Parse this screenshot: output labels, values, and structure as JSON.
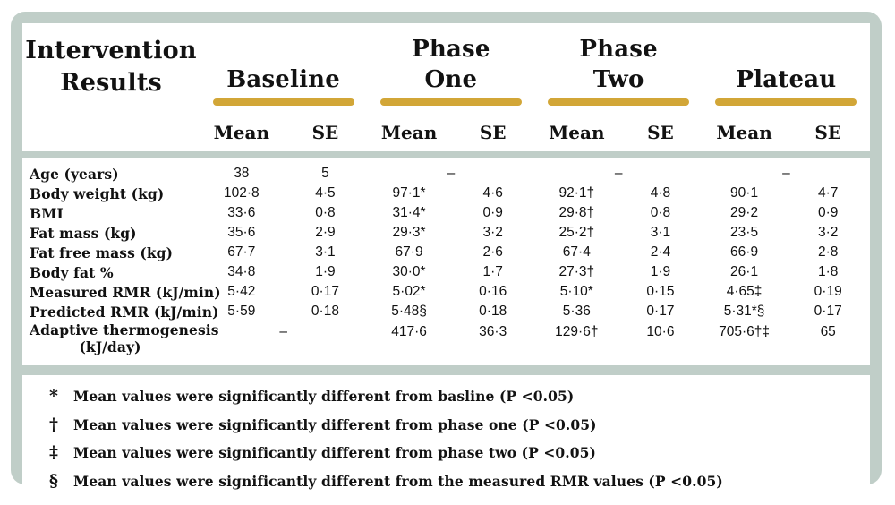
{
  "colors": {
    "frame_green": "#c0cec8",
    "gold": "#d2a637",
    "text": "#121212"
  },
  "header": {
    "title_line1": "Intervention",
    "title_line2": "Results",
    "groups": [
      {
        "line1": "",
        "line2": "Baseline"
      },
      {
        "line1": "Phase",
        "line2": "One"
      },
      {
        "line1": "Phase",
        "line2": "Two"
      },
      {
        "line1": "",
        "line2": "Plateau"
      }
    ],
    "mean_label": "Mean",
    "se_label": "SE"
  },
  "table": {
    "rows": [
      {
        "label": "Age (years)",
        "b_mean": "38",
        "b_se": "5",
        "p1": "–",
        "p2": "–",
        "pl": "–"
      },
      {
        "label": "Body weight (kg)",
        "b_mean": "102·8",
        "b_se": "4·5",
        "p1_mean": "97·1*",
        "p1_se": "4·6",
        "p2_mean": "92·1†",
        "p2_se": "4·8",
        "pl_mean": "90·1",
        "pl_se": "4·7"
      },
      {
        "label": "BMI",
        "b_mean": "33·6",
        "b_se": "0·8",
        "p1_mean": "31·4*",
        "p1_se": "0·9",
        "p2_mean": "29·8†",
        "p2_se": "0·8",
        "pl_mean": "29·2",
        "pl_se": "0·9"
      },
      {
        "label": "Fat mass (kg)",
        "b_mean": "35·6",
        "b_se": "2·9",
        "p1_mean": "29·3*",
        "p1_se": "3·2",
        "p2_mean": "25·2†",
        "p2_se": "3·1",
        "pl_mean": "23·5",
        "pl_se": "3·2"
      },
      {
        "label": "Fat free mass (kg)",
        "b_mean": "67·7",
        "b_se": "3·1",
        "p1_mean": "67·9",
        "p1_se": "2·6",
        "p2_mean": "67·4",
        "p2_se": "2·4",
        "pl_mean": "66·9",
        "pl_se": "2·8"
      },
      {
        "label": "Body fat %",
        "b_mean": "34·8",
        "b_se": "1·9",
        "p1_mean": "30·0*",
        "p1_se": "1·7",
        "p2_mean": "27·3†",
        "p2_se": "1·9",
        "pl_mean": "26·1",
        "pl_se": "1·8"
      },
      {
        "label": "Measured RMR (kJ/min)",
        "b_mean": "5·42",
        "b_se": "0·17",
        "p1_mean": "5·02*",
        "p1_se": "0·16",
        "p2_mean": "5·10*",
        "p2_se": "0·15",
        "pl_mean": "4·65‡",
        "pl_se": "0·19"
      },
      {
        "label": "Predicted RMR (kJ/min)",
        "b_mean": "5·59",
        "b_se": "0·18",
        "p1_mean": "5·48§",
        "p1_se": "0·18",
        "p2_mean": "5·36",
        "p2_se": "0·17",
        "pl_mean": "5·31*§",
        "pl_se": "0·17"
      },
      {
        "label": "Adaptive thermogenesis",
        "label2": "(kJ/day)",
        "b": "–",
        "p1_mean": "417·6",
        "p1_se": "36·3",
        "p2_mean": "129·6†",
        "p2_se": "10·6",
        "pl_mean": "705·6†‡",
        "pl_se": "65"
      }
    ]
  },
  "footnotes": [
    {
      "symbol": "*",
      "text": "Mean values were significantly different from basline (P <0.05)"
    },
    {
      "symbol": "†",
      "text": "Mean values were significantly different from phase one (P <0.05)"
    },
    {
      "symbol": "‡",
      "text": "Mean values were significantly different from phase two (P <0.05)"
    },
    {
      "symbol": "§",
      "text": "Mean values were significantly different from the measured RMR values (P <0.05)"
    }
  ]
}
